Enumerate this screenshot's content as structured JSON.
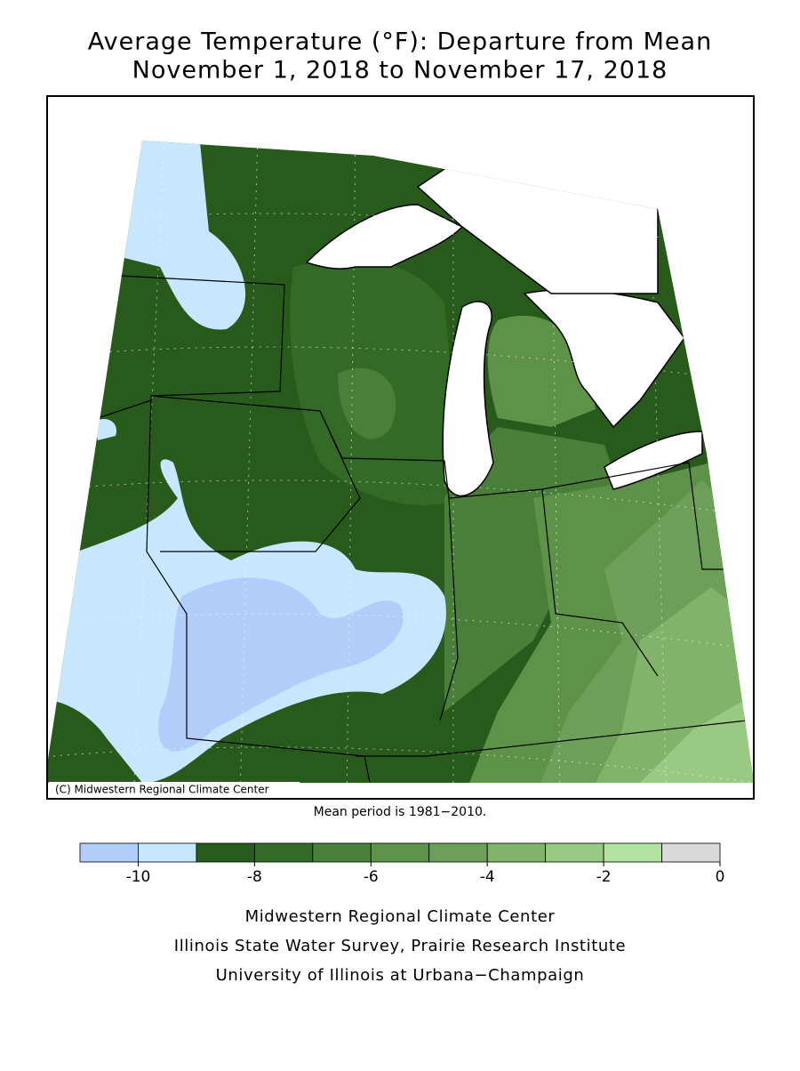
{
  "header": {
    "title": [
      "Average Temperature (°F): Departure from Mean",
      "November 1, 2018 to November 17, 2018"
    ]
  },
  "map": {
    "copyright": "(C) Midwestern Regional Climate Center"
  },
  "note": "Mean period is 1981−2010.",
  "legend": {
    "lim": [
      -11,
      0
    ],
    "ticks": [
      -10,
      -8,
      -6,
      -4,
      -2,
      0
    ],
    "colors": [
      "#b3cdfb",
      "#c8e6fd",
      "#285a1c",
      "#336b26",
      "#4a7f39",
      "#5e9249",
      "#6d9f58",
      "#82b36b",
      "#99c983",
      "#b3e3a0",
      "#d9d9d9"
    ]
  },
  "footer": [
    "Midwestern Regional Climate Center",
    "Illinois State Water Survey, Prairie Research Institute",
    "University of Illinois at Urbana−Champaign"
  ]
}
